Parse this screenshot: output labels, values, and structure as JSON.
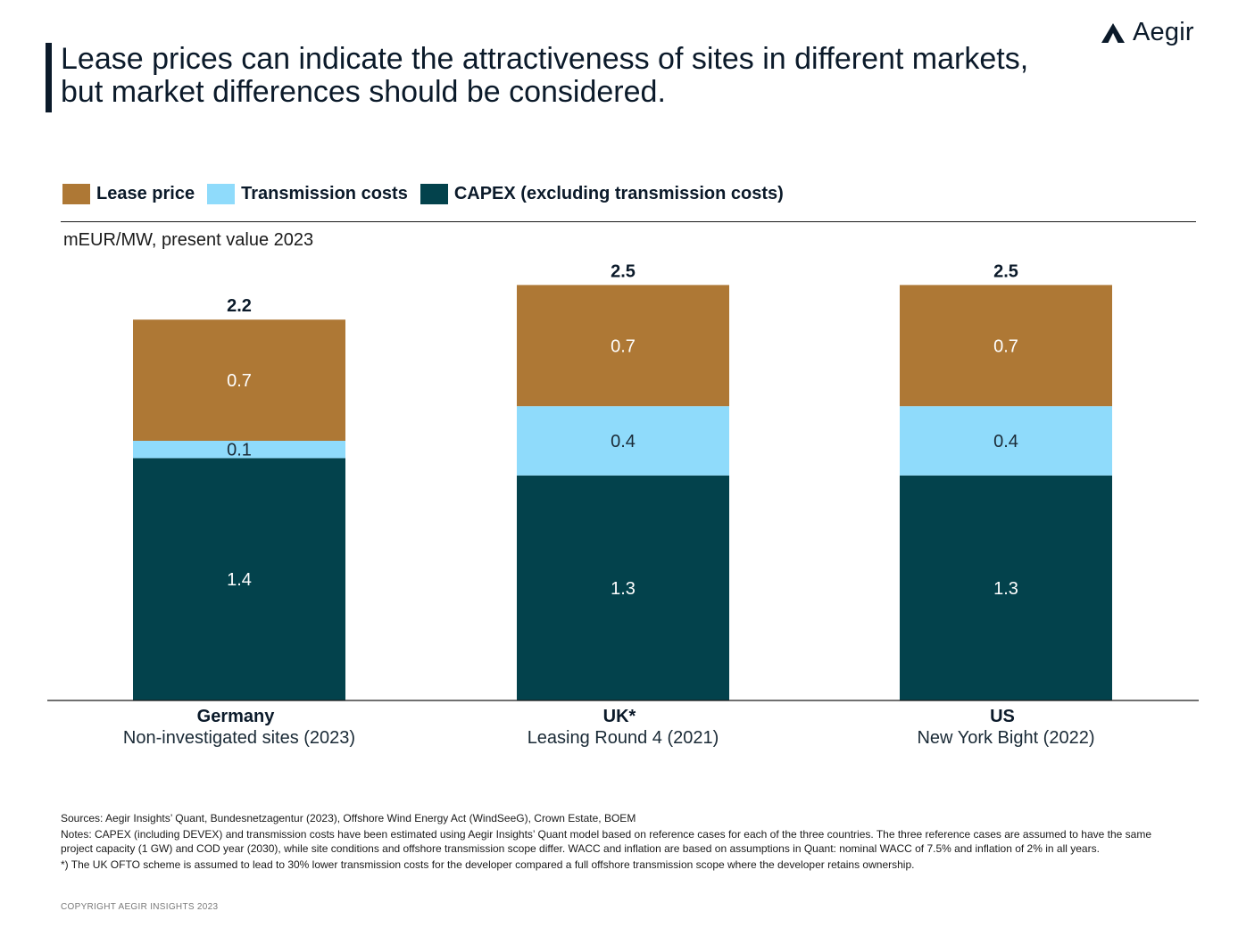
{
  "header": {
    "title": "Lease prices can indicate the attractiveness of sites in different markets, but market differences should be considered.",
    "brand_name": "Aegir",
    "brand_icon": "aegir-triangle-logo-icon"
  },
  "legend": {
    "items": [
      {
        "label": "Lease price",
        "color": "#ae7835"
      },
      {
        "label": "Transmission  costs",
        "color": "#8fdbfb"
      },
      {
        "label": "CAPEX (excluding transmission  costs)",
        "color": "#03424c"
      }
    ]
  },
  "unit_label": "mEUR/MW, present value 2023",
  "chart_data": {
    "type": "bar",
    "stacked": true,
    "title": "",
    "ylabel": "mEUR/MW, present value 2023",
    "ylim": [
      0,
      2.5
    ],
    "grid": false,
    "legend_position": "top-left",
    "categories": [
      {
        "name": "Germany",
        "subtitle": "Non-investigated sites (2023)"
      },
      {
        "name": "UK*",
        "subtitle": "Leasing Round 4 (2021)"
      },
      {
        "name": "US",
        "subtitle": "New York Bight (2022)"
      }
    ],
    "series": [
      {
        "name": "CAPEX (excluding transmission  costs)",
        "color": "#03424c",
        "values": [
          1.4,
          1.3,
          1.3
        ],
        "labels": [
          "1.4",
          "1.3",
          "1.3"
        ]
      },
      {
        "name": "Transmission  costs",
        "color": "#8fdbfb",
        "values": [
          0.1,
          0.4,
          0.4
        ],
        "labels": [
          "0.1",
          "0.4",
          "0.4"
        ]
      },
      {
        "name": "Lease price",
        "color": "#ae7835",
        "values": [
          0.7,
          0.7,
          0.7
        ],
        "labels": [
          "0.7",
          "0.7",
          "0.7"
        ]
      }
    ],
    "totals": [
      2.2,
      2.5,
      2.5
    ],
    "total_labels": [
      "2.2",
      "2.5",
      "2.5"
    ]
  },
  "footnotes": {
    "sources": "Sources: Aegir Insights’ Quant, Bundesnetzagentur  (2023), Offshore Wind Energy Act (WindSeeG), Crown Estate, BOEM",
    "notes": "Notes: CAPEX (including DEVEX) and transmission costs have been estimated  using Aegir Insights’ Quant model based on reference  cases for each of the three countries. The three reference cases are assumed to have the same project capacity  (1 GW) and COD year (2030), while site conditions and offshore transmission scope differ. WACC and inflation are based on assumptions in Quant: nominal WACC of 7.5% and inflation of 2% in all years.",
    "uk_note": "*) The UK OFTO scheme is assumed to lead to 30% lower transmission costs for the developer  compared  a full offshore transmission scope where the developer retains ownership."
  },
  "copyright": "COPYRIGHT  AEGIR  INSIGHTS  2023"
}
